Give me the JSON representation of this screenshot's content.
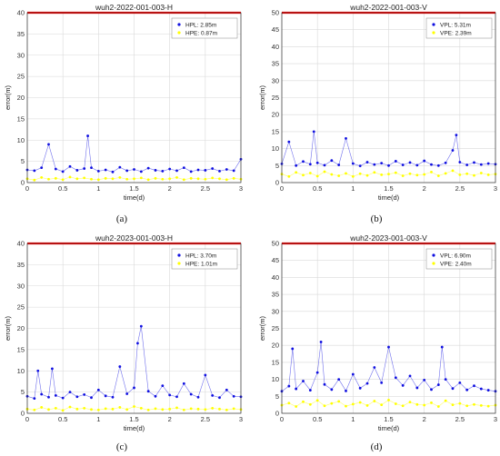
{
  "chart_data": [
    {
      "panel": "a",
      "type": "scatter",
      "title": "wuh2-2022-001-003-H",
      "xlabel": "time(d)",
      "ylabel": "error(m)",
      "xlim": [
        0,
        3
      ],
      "ylim": [
        0,
        40
      ],
      "xticks": [
        "0",
        "0.5",
        "1",
        "1.5",
        "2",
        "2.5",
        "3"
      ],
      "yticks": [
        "0",
        "5",
        "10",
        "15",
        "20",
        "25",
        "30",
        "35",
        "40"
      ],
      "threshold_line": 40,
      "legend_position": "top-right",
      "grid": true,
      "caption": "(a)",
      "series": [
        {
          "name": "HPL:  2.85m",
          "color": "#1010e0",
          "x": [
            0.0,
            0.1,
            0.2,
            0.3,
            0.4,
            0.5,
            0.6,
            0.7,
            0.8,
            0.85,
            0.9,
            1.0,
            1.1,
            1.2,
            1.3,
            1.4,
            1.5,
            1.6,
            1.7,
            1.8,
            1.9,
            2.0,
            2.1,
            2.2,
            2.3,
            2.4,
            2.5,
            2.6,
            2.7,
            2.8,
            2.9,
            3.0
          ],
          "y": [
            3.0,
            2.8,
            3.5,
            9.0,
            3.2,
            2.6,
            3.8,
            2.9,
            3.3,
            11.0,
            3.5,
            2.7,
            3.0,
            2.5,
            3.6,
            2.8,
            3.1,
            2.6,
            3.4,
            2.9,
            2.7,
            3.2,
            2.8,
            3.5,
            2.6,
            3.0,
            2.9,
            3.3,
            2.7,
            3.1,
            2.8,
            5.5
          ]
        },
        {
          "name": "HPE:  0.87m",
          "color": "#ffff00",
          "x": [
            0.0,
            0.1,
            0.2,
            0.3,
            0.4,
            0.5,
            0.6,
            0.7,
            0.8,
            0.9,
            1.0,
            1.1,
            1.2,
            1.3,
            1.4,
            1.5,
            1.6,
            1.7,
            1.8,
            1.9,
            2.0,
            2.1,
            2.2,
            2.3,
            2.4,
            2.5,
            2.6,
            2.7,
            2.8,
            2.9,
            3.0
          ],
          "y": [
            0.9,
            0.6,
            1.2,
            0.8,
            1.0,
            0.7,
            1.3,
            0.9,
            1.1,
            0.8,
            0.7,
            1.0,
            0.9,
            1.2,
            0.8,
            0.9,
            1.1,
            0.7,
            1.0,
            0.8,
            0.9,
            1.2,
            0.7,
            1.0,
            0.9,
            0.8,
            1.1,
            0.9,
            0.7,
            1.0,
            0.8
          ]
        }
      ]
    },
    {
      "panel": "b",
      "type": "scatter",
      "title": "wuh2-2022-001-003-V",
      "xlabel": "time(d)",
      "ylabel": "error(m)",
      "xlim": [
        0,
        3
      ],
      "ylim": [
        0,
        50
      ],
      "xticks": [
        "0",
        "0.5",
        "1",
        "1.5",
        "2",
        "2.5",
        "3"
      ],
      "yticks": [
        "0",
        "5",
        "10",
        "15",
        "20",
        "25",
        "30",
        "35",
        "40",
        "45",
        "50"
      ],
      "threshold_line": 50,
      "legend_position": "top-right",
      "grid": true,
      "caption": "(b)",
      "series": [
        {
          "name": "VPL:  5.31m",
          "color": "#1010e0",
          "x": [
            0.0,
            0.1,
            0.2,
            0.3,
            0.4,
            0.45,
            0.5,
            0.6,
            0.7,
            0.8,
            0.9,
            1.0,
            1.1,
            1.2,
            1.3,
            1.4,
            1.5,
            1.6,
            1.7,
            1.8,
            1.9,
            2.0,
            2.1,
            2.2,
            2.3,
            2.4,
            2.45,
            2.5,
            2.6,
            2.7,
            2.8,
            2.9,
            3.0
          ],
          "y": [
            5.5,
            12.0,
            5.0,
            6.2,
            5.4,
            15.0,
            5.8,
            5.1,
            6.5,
            5.2,
            13.0,
            5.6,
            4.9,
            6.0,
            5.3,
            5.7,
            5.0,
            6.3,
            5.2,
            5.9,
            5.1,
            6.4,
            5.3,
            5.0,
            5.8,
            9.5,
            14.0,
            6.0,
            5.2,
            5.9,
            5.3,
            5.6,
            5.4
          ]
        },
        {
          "name": "VPE:  2.39m",
          "color": "#ffff00",
          "x": [
            0.0,
            0.1,
            0.2,
            0.3,
            0.4,
            0.5,
            0.6,
            0.7,
            0.8,
            0.9,
            1.0,
            1.1,
            1.2,
            1.3,
            1.4,
            1.5,
            1.6,
            1.7,
            1.8,
            1.9,
            2.0,
            2.1,
            2.2,
            2.3,
            2.4,
            2.5,
            2.6,
            2.7,
            2.8,
            2.9,
            3.0
          ],
          "y": [
            2.5,
            1.8,
            3.0,
            2.2,
            2.8,
            1.9,
            3.2,
            2.4,
            2.0,
            2.7,
            1.8,
            2.6,
            2.1,
            3.0,
            2.3,
            2.5,
            2.9,
            2.0,
            2.6,
            2.2,
            2.4,
            3.1,
            2.0,
            2.7,
            3.5,
            2.3,
            2.6,
            2.1,
            2.8,
            2.3,
            2.5
          ]
        }
      ]
    },
    {
      "panel": "c",
      "type": "scatter",
      "title": "wuh2-2023-001-003-H",
      "xlabel": "time(d)",
      "ylabel": "error(m)",
      "xlim": [
        0,
        3
      ],
      "ylim": [
        0,
        40
      ],
      "xticks": [
        "0",
        "0.5",
        "1",
        "1.5",
        "2",
        "2.5",
        "3"
      ],
      "yticks": [
        "0",
        "5",
        "10",
        "15",
        "20",
        "25",
        "30",
        "35",
        "40"
      ],
      "threshold_line": 40,
      "legend_position": "top-right",
      "grid": true,
      "caption": "(c)",
      "series": [
        {
          "name": "HPL:  3.70m",
          "color": "#1010e0",
          "x": [
            0.0,
            0.1,
            0.15,
            0.2,
            0.3,
            0.35,
            0.4,
            0.5,
            0.6,
            0.7,
            0.8,
            0.9,
            1.0,
            1.1,
            1.2,
            1.3,
            1.4,
            1.5,
            1.55,
            1.6,
            1.7,
            1.8,
            1.9,
            2.0,
            2.1,
            2.2,
            2.3,
            2.4,
            2.5,
            2.6,
            2.7,
            2.8,
            2.9,
            3.0
          ],
          "y": [
            4.0,
            3.5,
            10.0,
            4.5,
            3.8,
            10.5,
            4.2,
            3.6,
            5.0,
            3.9,
            4.4,
            3.7,
            5.5,
            4.1,
            3.8,
            11.0,
            4.6,
            6.0,
            16.5,
            20.5,
            5.2,
            4.0,
            6.5,
            4.3,
            3.9,
            7.0,
            4.5,
            3.8,
            9.0,
            4.2,
            3.7,
            5.5,
            4.0,
            3.9
          ]
        },
        {
          "name": "HPE:  1.01m",
          "color": "#ffff00",
          "x": [
            0.0,
            0.1,
            0.2,
            0.3,
            0.4,
            0.5,
            0.6,
            0.7,
            0.8,
            0.9,
            1.0,
            1.1,
            1.2,
            1.3,
            1.4,
            1.5,
            1.6,
            1.7,
            1.8,
            1.9,
            2.0,
            2.1,
            2.2,
            2.3,
            2.4,
            2.5,
            2.6,
            2.7,
            2.8,
            2.9,
            3.0
          ],
          "y": [
            1.0,
            0.8,
            1.4,
            0.9,
            1.2,
            0.7,
            1.5,
            1.0,
            1.2,
            0.9,
            0.8,
            1.1,
            1.0,
            1.4,
            0.9,
            1.6,
            1.2,
            0.8,
            1.1,
            0.9,
            1.0,
            1.3,
            0.8,
            1.1,
            1.0,
            0.9,
            1.2,
            1.0,
            0.8,
            1.1,
            0.9
          ]
        }
      ]
    },
    {
      "panel": "d",
      "type": "scatter",
      "title": "wuh2-2023-001-003-V",
      "xlabel": "time(d)",
      "ylabel": "error(m)",
      "xlim": [
        0,
        3
      ],
      "ylim": [
        0,
        50
      ],
      "xticks": [
        "0",
        "0.5",
        "1",
        "1.5",
        "2",
        "2.5",
        "3"
      ],
      "yticks": [
        "0",
        "5",
        "10",
        "15",
        "20",
        "25",
        "30",
        "35",
        "40",
        "45",
        "50"
      ],
      "threshold_line": 50,
      "legend_position": "top-right",
      "grid": true,
      "caption": "(d)",
      "series": [
        {
          "name": "VPL:  6.90m",
          "color": "#1010e0",
          "x": [
            0.0,
            0.1,
            0.15,
            0.2,
            0.3,
            0.4,
            0.5,
            0.55,
            0.6,
            0.7,
            0.8,
            0.9,
            1.0,
            1.1,
            1.2,
            1.3,
            1.4,
            1.5,
            1.6,
            1.7,
            1.8,
            1.9,
            2.0,
            2.1,
            2.2,
            2.25,
            2.3,
            2.4,
            2.5,
            2.6,
            2.7,
            2.8,
            2.9,
            3.0
          ],
          "y": [
            6.5,
            8.0,
            19.0,
            7.2,
            9.5,
            6.8,
            12.0,
            21.0,
            8.5,
            7.0,
            10.0,
            6.6,
            11.5,
            7.4,
            8.8,
            13.5,
            9.0,
            19.5,
            10.5,
            8.2,
            11.0,
            7.5,
            9.8,
            7.0,
            8.4,
            19.5,
            10.0,
            7.3,
            9.0,
            6.9,
            8.1,
            7.2,
            6.8,
            6.5
          ]
        },
        {
          "name": "VPE:  2.40m",
          "color": "#ffff00",
          "x": [
            0.0,
            0.1,
            0.2,
            0.3,
            0.4,
            0.5,
            0.6,
            0.7,
            0.8,
            0.9,
            1.0,
            1.1,
            1.2,
            1.3,
            1.4,
            1.5,
            1.6,
            1.7,
            1.8,
            1.9,
            2.0,
            2.1,
            2.2,
            2.3,
            2.4,
            2.5,
            2.6,
            2.7,
            2.8,
            2.9,
            3.0
          ],
          "y": [
            2.4,
            3.0,
            2.0,
            3.4,
            2.6,
            3.8,
            2.2,
            2.9,
            3.5,
            2.1,
            2.7,
            3.2,
            2.3,
            3.6,
            2.5,
            3.9,
            2.8,
            2.2,
            3.3,
            2.6,
            2.4,
            3.1,
            2.0,
            3.7,
            2.5,
            2.9,
            2.2,
            2.6,
            2.3,
            2.1,
            2.4
          ]
        }
      ]
    }
  ],
  "colors": {
    "threshold": "#ff0000",
    "grid": "#d9d9d9",
    "axis": "#333333"
  }
}
